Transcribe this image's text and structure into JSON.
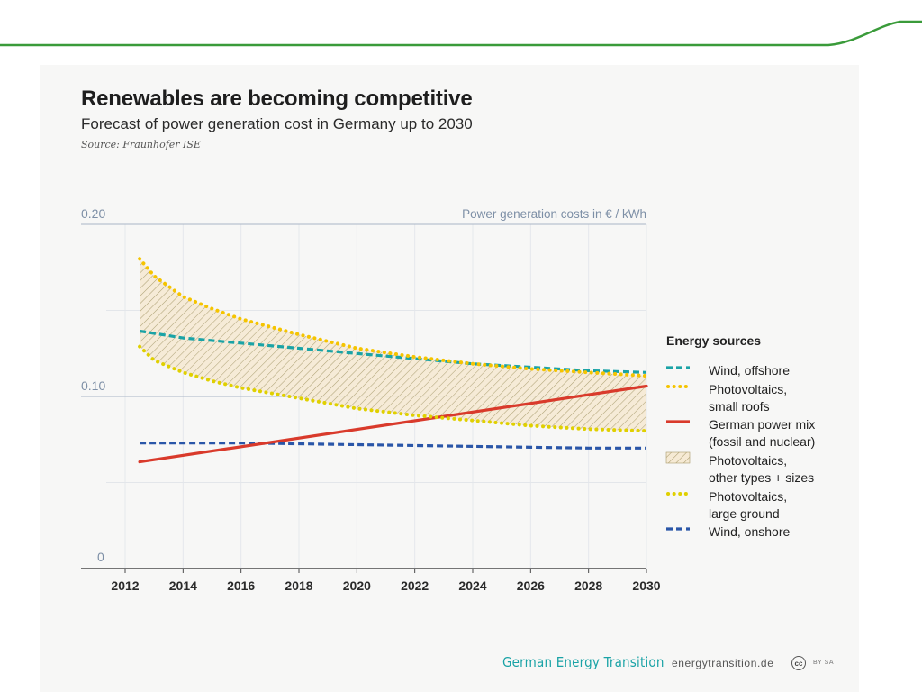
{
  "header": {
    "title": "Renewables are becoming competitive",
    "subtitle": "Forecast of power generation cost in Germany up to 2030",
    "source": "Source: Fraunhofer ISE"
  },
  "footer": {
    "brand": "German Energy Transition",
    "url": "energytransition.de",
    "license_badge": "cc",
    "license_text": "BY SA"
  },
  "colors": {
    "top_line": "#3a9b3a",
    "wind_offshore": "#1aa3a6",
    "pv_small_roofs": "#f5c400",
    "german_power_mix": "#d93a2b",
    "pv_other_band": "#a89a6a",
    "pv_large_ground": "#e0d000",
    "wind_onshore": "#2a56a8",
    "axis_text": "#7d8fa6"
  },
  "chart_data": {
    "type": "line",
    "title": "",
    "xlabel": "",
    "ylabel": "Power generation costs in € / kWh",
    "xlim": [
      2010.5,
      2030
    ],
    "ylim": [
      0,
      0.2
    ],
    "x_ticks": [
      2012,
      2014,
      2016,
      2018,
      2020,
      2022,
      2024,
      2026,
      2028,
      2030
    ],
    "y_ticks": [
      0,
      0.1,
      0.2
    ],
    "y_tick_labels": [
      "0",
      "0.10",
      "0.20"
    ],
    "grid": "horizontal",
    "legend_title": "Energy sources",
    "legend_position": "right",
    "series": [
      {
        "key": "wind_offshore",
        "name": "Wind, offshore",
        "style": "dashed",
        "x": [
          2012.5,
          2014,
          2016,
          2018,
          2020,
          2022,
          2024,
          2026,
          2028,
          2030
        ],
        "y": [
          0.138,
          0.134,
          0.131,
          0.128,
          0.125,
          0.122,
          0.119,
          0.117,
          0.115,
          0.114
        ]
      },
      {
        "key": "pv_small_roofs",
        "name": "Photovoltaics, small roofs",
        "style": "dotted",
        "x": [
          2012.5,
          2013,
          2014,
          2015,
          2016,
          2018,
          2020,
          2022,
          2024,
          2026,
          2028,
          2030
        ],
        "y": [
          0.18,
          0.17,
          0.158,
          0.151,
          0.145,
          0.136,
          0.128,
          0.123,
          0.119,
          0.116,
          0.114,
          0.112
        ]
      },
      {
        "key": "german_power_mix",
        "name": "German power mix (fossil and nuclear)",
        "style": "solid",
        "x": [
          2012.5,
          2030
        ],
        "y": [
          0.062,
          0.106
        ]
      },
      {
        "key": "pv_large_ground",
        "name": "Photovoltaics, large ground",
        "style": "dotted",
        "x": [
          2012.5,
          2013,
          2014,
          2015,
          2016,
          2018,
          2020,
          2022,
          2024,
          2026,
          2028,
          2030
        ],
        "y": [
          0.129,
          0.121,
          0.114,
          0.109,
          0.105,
          0.099,
          0.093,
          0.089,
          0.086,
          0.083,
          0.081,
          0.08
        ]
      },
      {
        "key": "wind_onshore",
        "name": "Wind, onshore",
        "style": "dashed",
        "x": [
          2012.5,
          2016,
          2020,
          2024,
          2028,
          2030
        ],
        "y": [
          0.073,
          0.073,
          0.072,
          0.071,
          0.07,
          0.07
        ]
      }
    ],
    "band": {
      "key": "pv_other_band",
      "name": "Photovoltaics, other types + sizes",
      "upper_series": "pv_small_roofs",
      "lower_series": "pv_large_ground"
    },
    "legend": [
      {
        "key": "wind_offshore",
        "lines": [
          "Wind, offshore"
        ],
        "swatch": "dashed"
      },
      {
        "key": "pv_small_roofs",
        "lines": [
          "Photovoltaics,",
          "small roofs"
        ],
        "swatch": "dotted"
      },
      {
        "key": "german_power_mix",
        "lines": [
          "German power mix",
          "(fossil and nuclear)"
        ],
        "swatch": "solid"
      },
      {
        "key": "pv_other_band",
        "lines": [
          "Photovoltaics,",
          "other types + sizes"
        ],
        "swatch": "hatch"
      },
      {
        "key": "pv_large_ground",
        "lines": [
          "Photovoltaics,",
          "large ground"
        ],
        "swatch": "dotted"
      },
      {
        "key": "wind_onshore",
        "lines": [
          "Wind, onshore"
        ],
        "swatch": "dashed"
      }
    ]
  }
}
